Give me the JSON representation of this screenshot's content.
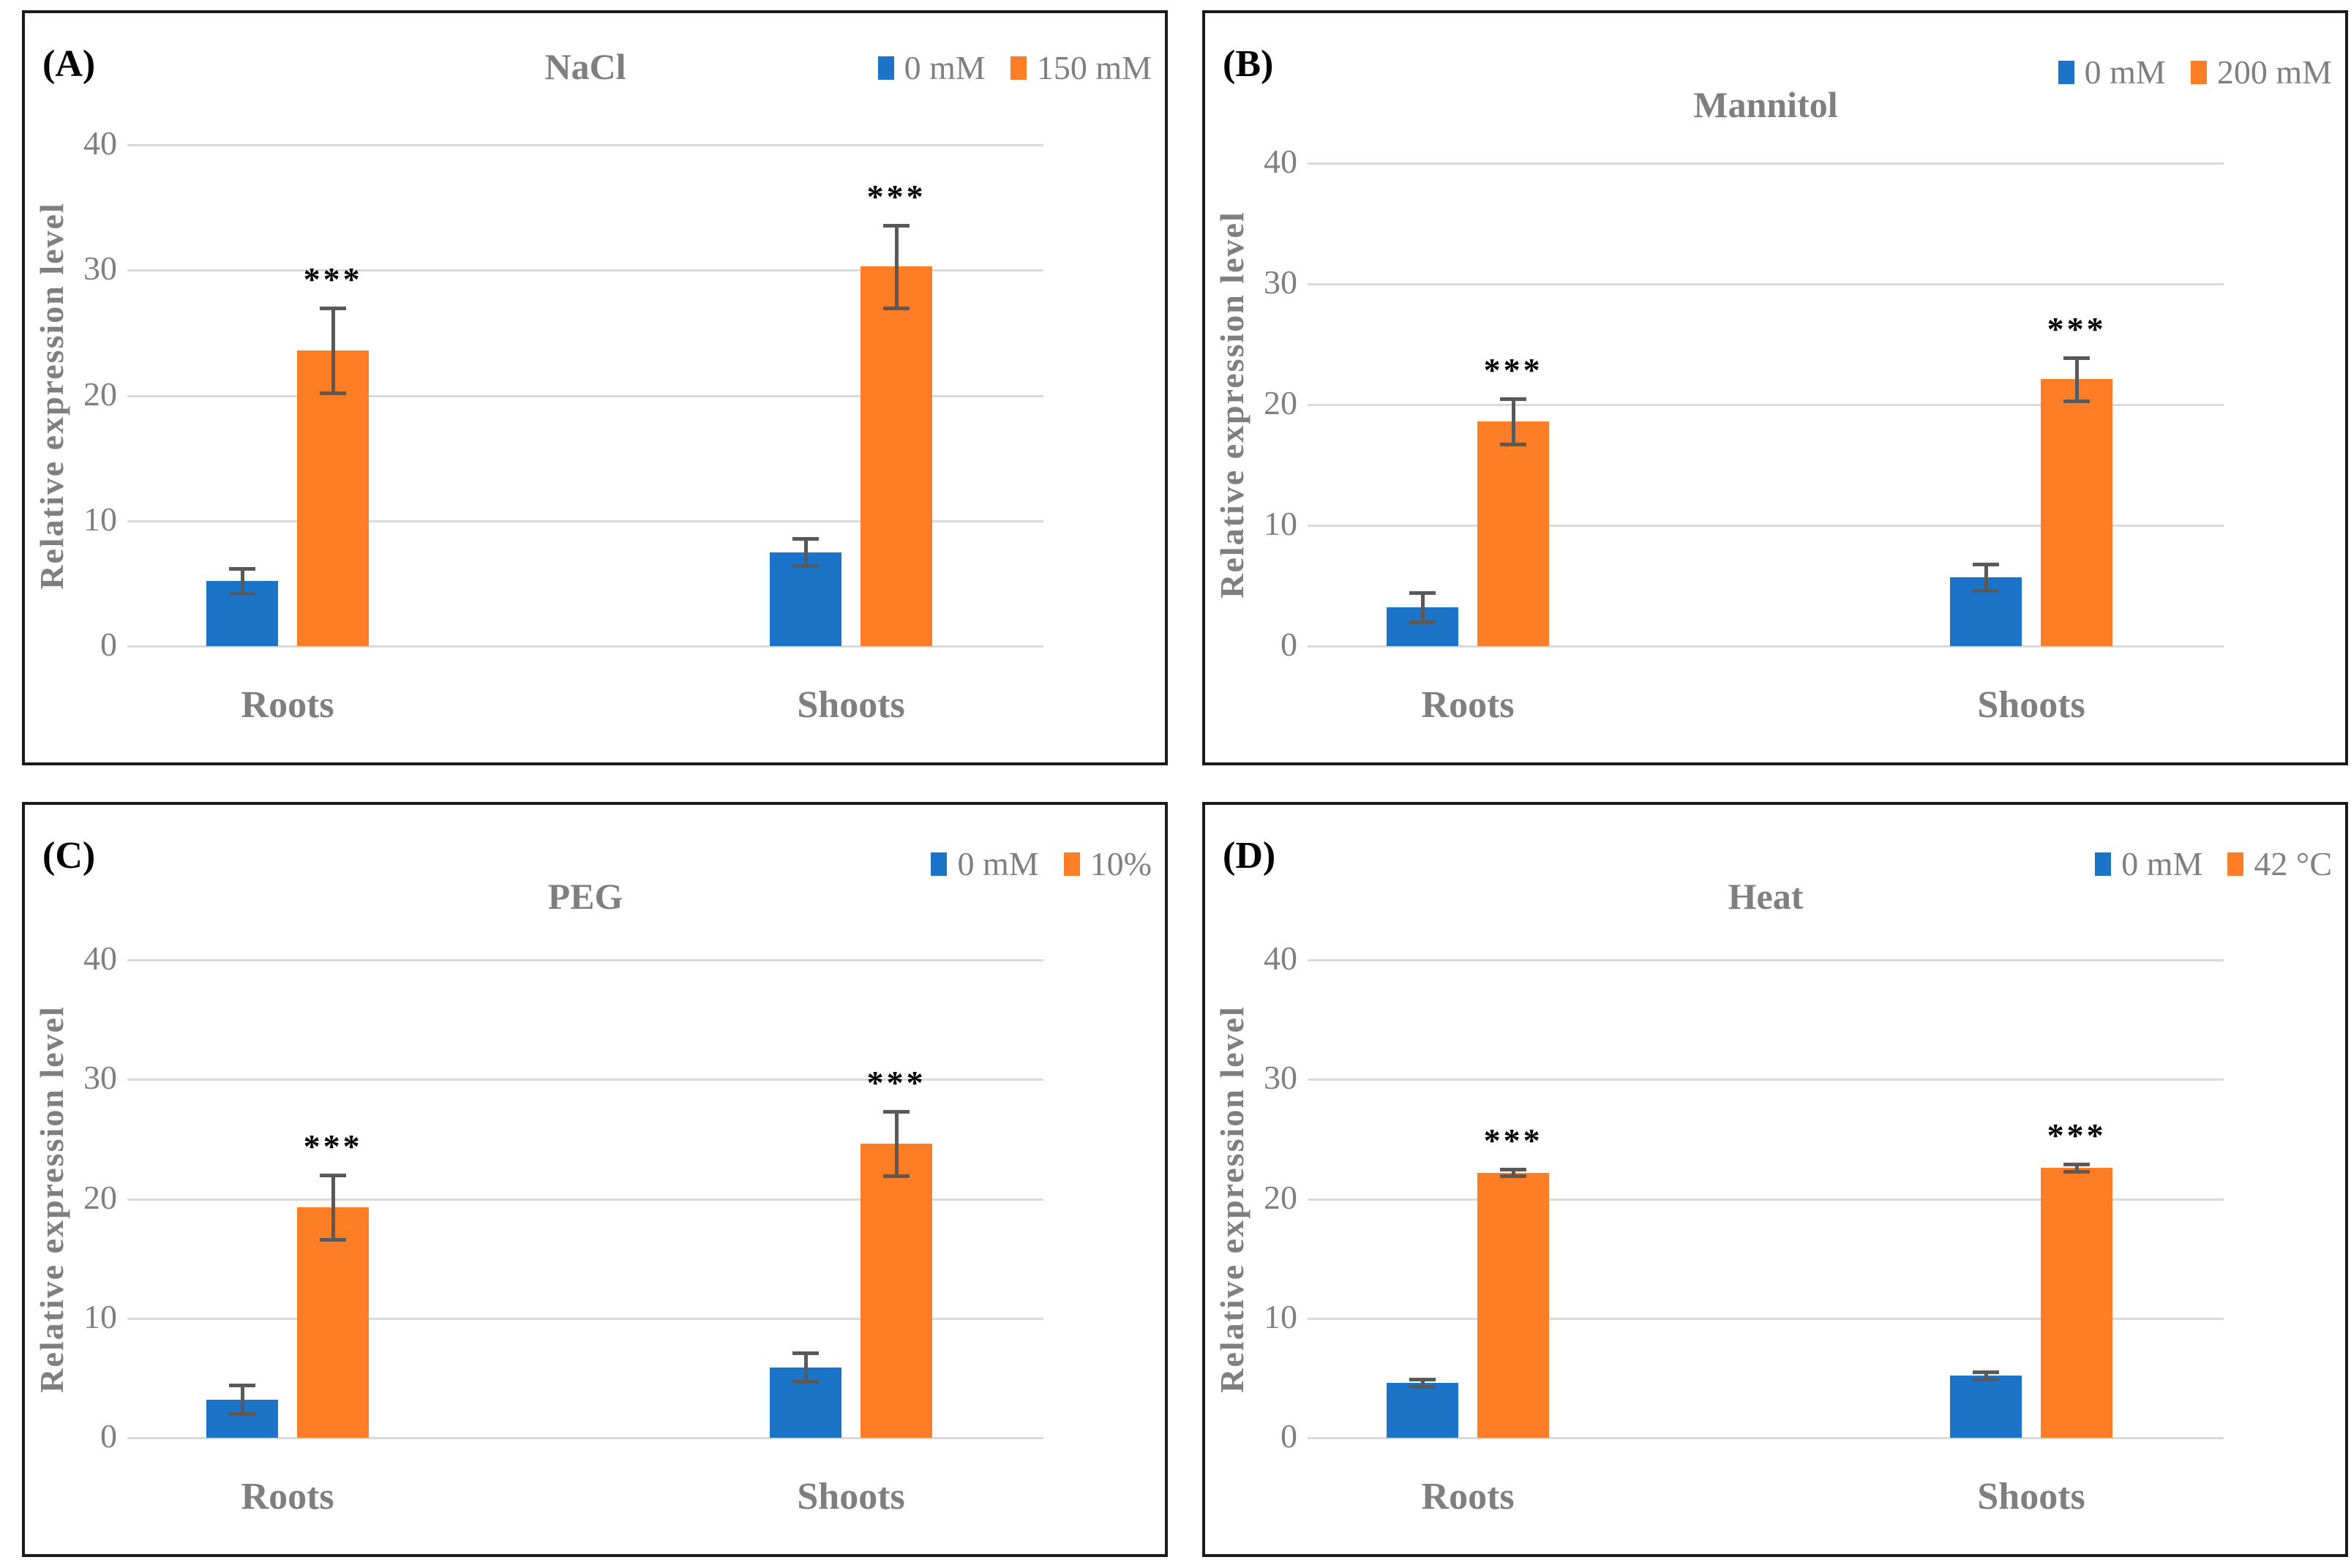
{
  "figure": {
    "background": "#ffffff",
    "border_color": "#1a1a1a",
    "grid_color": "#d9d9d9",
    "text_color": "#7f7f7f",
    "annotation_color": "#000000",
    "error_bar_color": "#595959",
    "series_colors": {
      "control": "#1b74c8",
      "treatment": "#fd7e27"
    }
  },
  "chart_data": [
    {
      "type": "bar",
      "panel_label": "(A)",
      "title": "NaCl",
      "title_inline_with_legend": true,
      "ylabel": "Relative expression level",
      "ylim": [
        0,
        40
      ],
      "yticks": [
        0,
        10,
        20,
        30,
        40
      ],
      "grid": true,
      "legend_position": "top-right",
      "categories": [
        "Roots",
        "Shoots"
      ],
      "series": [
        {
          "name": "0 mM",
          "role": "control",
          "values": [
            5.2,
            7.5
          ],
          "errors": [
            1.0,
            1.1
          ]
        },
        {
          "name": "150 mM",
          "role": "treatment",
          "values": [
            23.6,
            30.3
          ],
          "errors": [
            3.4,
            3.3
          ],
          "significance": [
            "***",
            "***"
          ]
        }
      ]
    },
    {
      "type": "bar",
      "panel_label": "(B)",
      "title": "Mannitol",
      "title_inline_with_legend": false,
      "ylabel": "Relative expression level",
      "ylim": [
        0,
        40
      ],
      "yticks": [
        0,
        10,
        20,
        30,
        40
      ],
      "grid": true,
      "legend_position": "top-right",
      "categories": [
        "Roots",
        "Shoots"
      ],
      "series": [
        {
          "name": "0 mM",
          "role": "control",
          "values": [
            3.2,
            5.7
          ],
          "errors": [
            1.2,
            1.1
          ]
        },
        {
          "name": "200 mM",
          "role": "treatment",
          "values": [
            18.6,
            22.1
          ],
          "errors": [
            1.9,
            1.8
          ],
          "significance": [
            "***",
            "***"
          ]
        }
      ]
    },
    {
      "type": "bar",
      "panel_label": "(C)",
      "title": "PEG",
      "title_inline_with_legend": false,
      "ylabel": "Relative expression level",
      "ylim": [
        0,
        40
      ],
      "yticks": [
        0,
        10,
        20,
        30,
        40
      ],
      "grid": true,
      "legend_position": "top-right",
      "categories": [
        "Roots",
        "Shoots"
      ],
      "series": [
        {
          "name": "0 mM",
          "role": "control",
          "values": [
            3.2,
            5.9
          ],
          "errors": [
            1.2,
            1.2
          ]
        },
        {
          "name": "10%",
          "role": "treatment",
          "values": [
            19.3,
            24.6
          ],
          "errors": [
            2.7,
            2.7
          ],
          "significance": [
            "***",
            "***"
          ]
        }
      ]
    },
    {
      "type": "bar",
      "panel_label": "(D)",
      "title": "Heat",
      "title_inline_with_legend": false,
      "ylabel": "Relative expression level",
      "ylim": [
        0,
        40
      ],
      "yticks": [
        0,
        10,
        20,
        30,
        40
      ],
      "grid": true,
      "legend_position": "top-right",
      "categories": [
        "Roots",
        "Shoots"
      ],
      "series": [
        {
          "name": "0 mM",
          "role": "control",
          "values": [
            4.6,
            5.2
          ],
          "errors": [
            0.3,
            0.3
          ]
        },
        {
          "name": "42 °C",
          "role": "treatment",
          "values": [
            22.2,
            22.6
          ],
          "errors": [
            0.3,
            0.3
          ],
          "significance": [
            "***",
            "***"
          ]
        }
      ]
    }
  ]
}
